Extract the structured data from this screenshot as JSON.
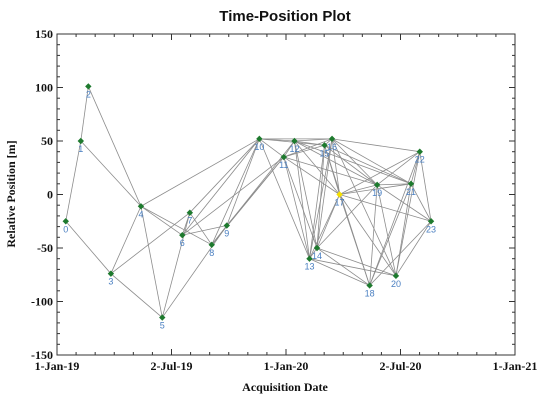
{
  "chart_data": {
    "type": "scatter",
    "title": "Time-Position Plot",
    "xlabel": "Acquisition Date",
    "ylabel": "Relative Position [m]",
    "x_ticks": [
      "1-Jan-19",
      "2-Jul-19",
      "1-Jan-20",
      "2-Jul-20",
      "1-Jan-21"
    ],
    "x_range": [
      "2019-01-01",
      "2021-01-01"
    ],
    "y_ticks": [
      150,
      100,
      50,
      0,
      -50,
      -100,
      -150
    ],
    "ylim": [
      -150,
      150
    ],
    "grid": false,
    "point_color": "#1e7a2e",
    "reference_color": "#f5e000",
    "edge_color": "#8c8c8c",
    "label_color": "#4a7fc1",
    "points": [
      {
        "label": "0",
        "x": "2019-01-15",
        "y": -25
      },
      {
        "label": "1",
        "x": "2019-02-08",
        "y": 50
      },
      {
        "label": "2",
        "x": "2019-02-20",
        "y": 101
      },
      {
        "label": "3",
        "x": "2019-03-28",
        "y": -74
      },
      {
        "label": "4",
        "x": "2019-05-15",
        "y": -11
      },
      {
        "label": "5",
        "x": "2019-06-18",
        "y": -115
      },
      {
        "label": "6",
        "x": "2019-07-20",
        "y": -38
      },
      {
        "label": "7",
        "x": "2019-08-01",
        "y": -17
      },
      {
        "label": "8",
        "x": "2019-09-05",
        "y": -47
      },
      {
        "label": "9",
        "x": "2019-09-29",
        "y": -29
      },
      {
        "label": "10",
        "x": "2019-11-20",
        "y": 52
      },
      {
        "label": "11",
        "x": "2019-12-29",
        "y": 35
      },
      {
        "label": "12",
        "x": "2020-01-15",
        "y": 50
      },
      {
        "label": "13",
        "x": "2020-02-08",
        "y": -60
      },
      {
        "label": "14",
        "x": "2020-02-20",
        "y": -50
      },
      {
        "label": "15",
        "x": "2020-03-03",
        "y": 46
      },
      {
        "label": "16",
        "x": "2020-03-15",
        "y": 52
      },
      {
        "label": "17",
        "x": "2020-03-27",
        "y": 0,
        "reference": true
      },
      {
        "label": "18",
        "x": "2020-05-14",
        "y": -85
      },
      {
        "label": "19",
        "x": "2020-05-26",
        "y": 9
      },
      {
        "label": "20",
        "x": "2020-06-25",
        "y": -76
      },
      {
        "label": "21",
        "x": "2020-07-19",
        "y": 10
      },
      {
        "label": "22",
        "x": "2020-08-02",
        "y": 40
      },
      {
        "label": "23",
        "x": "2020-08-20",
        "y": -25
      }
    ],
    "connections": [
      [
        0,
        1
      ],
      [
        0,
        3
      ],
      [
        1,
        2
      ],
      [
        1,
        4
      ],
      [
        2,
        4
      ],
      [
        3,
        4
      ],
      [
        3,
        5
      ],
      [
        3,
        7
      ],
      [
        4,
        5
      ],
      [
        4,
        6
      ],
      [
        4,
        8
      ],
      [
        4,
        10
      ],
      [
        5,
        7
      ],
      [
        5,
        9
      ],
      [
        6,
        7
      ],
      [
        6,
        9
      ],
      [
        6,
        10
      ],
      [
        6,
        11
      ],
      [
        7,
        8
      ],
      [
        7,
        10
      ],
      [
        8,
        9
      ],
      [
        8,
        10
      ],
      [
        8,
        11
      ],
      [
        8,
        12
      ],
      [
        9,
        10
      ],
      [
        9,
        11
      ],
      [
        10,
        11
      ],
      [
        10,
        12
      ],
      [
        10,
        15
      ],
      [
        10,
        16
      ],
      [
        10,
        13
      ],
      [
        11,
        12
      ],
      [
        11,
        13
      ],
      [
        11,
        14
      ],
      [
        11,
        15
      ],
      [
        11,
        16
      ],
      [
        11,
        17
      ],
      [
        11,
        19
      ],
      [
        12,
        13
      ],
      [
        12,
        14
      ],
      [
        12,
        15
      ],
      [
        12,
        16
      ],
      [
        12,
        17
      ],
      [
        12,
        19
      ],
      [
        12,
        21
      ],
      [
        13,
        14
      ],
      [
        13,
        15
      ],
      [
        13,
        16
      ],
      [
        13,
        17
      ],
      [
        13,
        18
      ],
      [
        13,
        20
      ],
      [
        14,
        15
      ],
      [
        14,
        16
      ],
      [
        14,
        17
      ],
      [
        14,
        18
      ],
      [
        14,
        19
      ],
      [
        14,
        20
      ],
      [
        15,
        16
      ],
      [
        15,
        17
      ],
      [
        15,
        18
      ],
      [
        15,
        19
      ],
      [
        15,
        21
      ],
      [
        16,
        17
      ],
      [
        16,
        19
      ],
      [
        16,
        20
      ],
      [
        16,
        21
      ],
      [
        16,
        22
      ],
      [
        17,
        18
      ],
      [
        17,
        19
      ],
      [
        17,
        20
      ],
      [
        17,
        21
      ],
      [
        17,
        22
      ],
      [
        17,
        23
      ],
      [
        18,
        19
      ],
      [
        18,
        21
      ],
      [
        18,
        22
      ],
      [
        18,
        23
      ],
      [
        19,
        20
      ],
      [
        19,
        21
      ],
      [
        19,
        22
      ],
      [
        19,
        23
      ],
      [
        20,
        21
      ],
      [
        20,
        22
      ],
      [
        20,
        23
      ],
      [
        21,
        22
      ],
      [
        21,
        23
      ],
      [
        22,
        23
      ]
    ]
  }
}
